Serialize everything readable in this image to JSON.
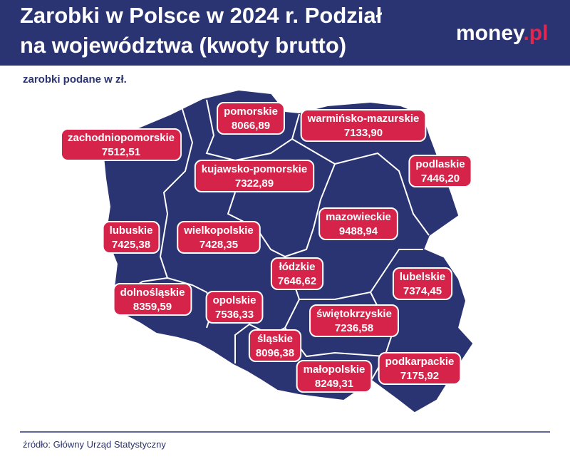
{
  "header": {
    "title_lines": [
      "Zarobki w Polsce w 2024 r. Podział",
      "na województwa (kwoty brutto)"
    ],
    "brand": {
      "name": "money",
      "suffix": ".pl"
    }
  },
  "subtitle": "zarobki podane w zł.",
  "regions": [
    {
      "name": "zachodniopomorskie",
      "value": "7512,51"
    },
    {
      "name": "pomorskie",
      "value": "8066,89"
    },
    {
      "name": "warmińsko-mazurskie",
      "value": "7133,90"
    },
    {
      "name": "podlaskie",
      "value": "7446,20"
    },
    {
      "name": "kujawsko-pomorskie",
      "value": "7322,89"
    },
    {
      "name": "mazowieckie",
      "value": "9488,94"
    },
    {
      "name": "lubuskie",
      "value": "7425,38"
    },
    {
      "name": "wielkopolskie",
      "value": "7428,35"
    },
    {
      "name": "łódzkie",
      "value": "7646,62"
    },
    {
      "name": "lubelskie",
      "value": "7374,45"
    },
    {
      "name": "dolnośląskie",
      "value": "8359,59"
    },
    {
      "name": "opolskie",
      "value": "7536,33"
    },
    {
      "name": "świętokrzyskie",
      "value": "7236,58"
    },
    {
      "name": "śląskie",
      "value": "8096,38"
    },
    {
      "name": "małopolskie",
      "value": "8249,31"
    },
    {
      "name": "podkarpackie",
      "value": "7175,92"
    }
  ],
  "source": "źródło: Główny Urząd Statystyczny"
}
